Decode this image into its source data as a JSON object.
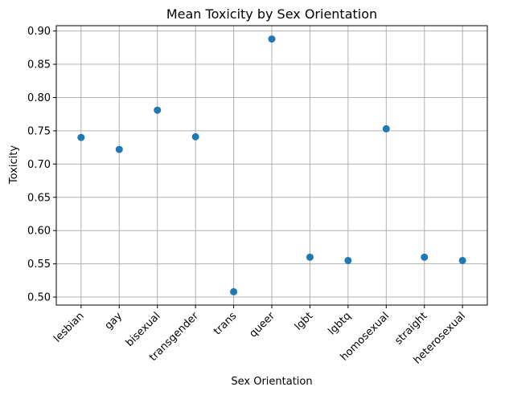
{
  "chart_data": {
    "type": "scatter",
    "title": "Mean Toxicity by Sex Orientation",
    "xlabel": "Sex Orientation",
    "ylabel": "Toxicity",
    "categories": [
      "lesbian",
      "gay",
      "bisexual",
      "transgender",
      "trans",
      "queer",
      "lgbt",
      "lgbtq",
      "homosexual",
      "straight",
      "heterosexual"
    ],
    "values": [
      0.74,
      0.722,
      0.781,
      0.741,
      0.508,
      0.888,
      0.56,
      0.555,
      0.753,
      0.56,
      0.555
    ],
    "ylim": [
      0.488,
      0.908
    ],
    "yticks": [
      "0.50",
      "0.55",
      "0.60",
      "0.65",
      "0.70",
      "0.75",
      "0.80",
      "0.85",
      "0.90"
    ],
    "grid": true,
    "marker_color": "#1f77b4",
    "grid_color": "#b0b0b0"
  }
}
